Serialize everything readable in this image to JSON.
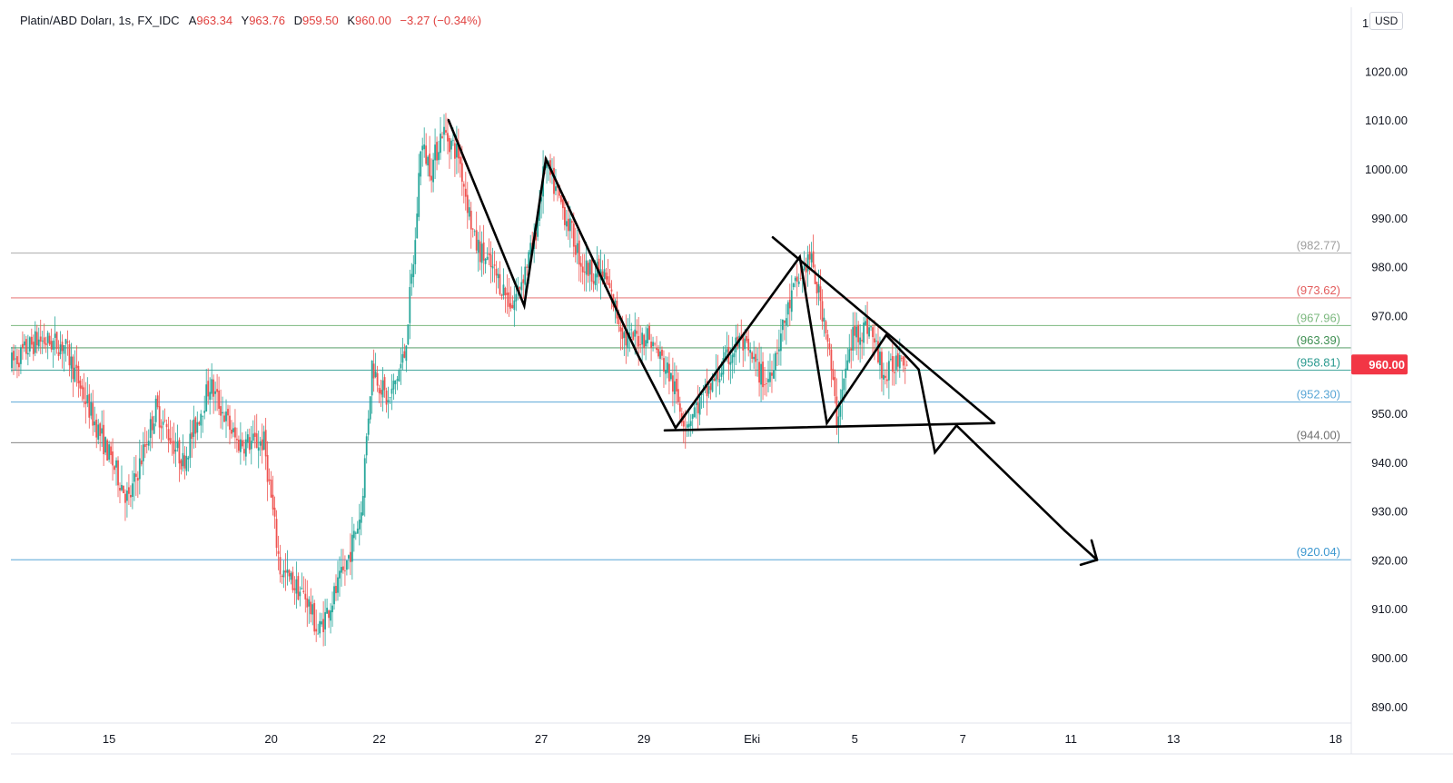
{
  "legend": {
    "symbol": "Platin/ABD Doları, 1s, FX_IDC",
    "open_label": "A",
    "open": "963.34",
    "high_label": "Y",
    "high": "963.76",
    "low_label": "D",
    "low": "959.50",
    "close_label": "K",
    "close": "960.00",
    "change": "−3.27 (−0.34%)"
  },
  "currency": "USD",
  "colors": {
    "up": "#26a69a",
    "down": "#ef5350",
    "last_price_badge": "#f23645",
    "drawing": "#000000"
  },
  "chart_data": {
    "type": "candlestick",
    "y_ticks": [
      "890.00",
      "900.00",
      "910.00",
      "920.00",
      "930.00",
      "940.00",
      "950.00",
      "960.00",
      "970.00",
      "980.00",
      "990.00",
      "1000.00",
      "1010.00",
      "1020.00"
    ],
    "y_top_partial_label": "1",
    "ylim": [
      885,
      1030
    ],
    "x_ticks": [
      {
        "label": "15",
        "slot": 18
      },
      {
        "label": "20",
        "slot": 48
      },
      {
        "label": "22",
        "slot": 68
      },
      {
        "label": "27",
        "slot": 98
      },
      {
        "label": "29",
        "slot": 117
      },
      {
        "label": "Eki",
        "slot": 137
      },
      {
        "label": "5",
        "slot": 156
      },
      {
        "label": "7",
        "slot": 176
      },
      {
        "label": "11",
        "slot": 196
      },
      {
        "label": "13",
        "slot": 215
      },
      {
        "label": "18",
        "slot": 245
      }
    ],
    "candle_count": 166,
    "price_path": [
      [
        0,
        960
      ],
      [
        5,
        965
      ],
      [
        10,
        964
      ],
      [
        15,
        950
      ],
      [
        22,
        932
      ],
      [
        27,
        951
      ],
      [
        32,
        940
      ],
      [
        37,
        956
      ],
      [
        42,
        944
      ],
      [
        47,
        944
      ],
      [
        50,
        918
      ],
      [
        55,
        912
      ],
      [
        57,
        905
      ],
      [
        62,
        918
      ],
      [
        65,
        930
      ],
      [
        67,
        960
      ],
      [
        70,
        952
      ],
      [
        73,
        962
      ],
      [
        75,
        985
      ],
      [
        76,
        1005
      ],
      [
        78,
        1000
      ],
      [
        80,
        1008
      ],
      [
        83,
        1003
      ],
      [
        86,
        985
      ],
      [
        90,
        978
      ],
      [
        93,
        972
      ],
      [
        97,
        985
      ],
      [
        99,
        1001
      ],
      [
        103,
        990
      ],
      [
        106,
        980
      ],
      [
        110,
        978
      ],
      [
        114,
        965
      ],
      [
        118,
        966
      ],
      [
        122,
        958
      ],
      [
        125,
        948
      ],
      [
        130,
        956
      ],
      [
        135,
        965
      ],
      [
        140,
        956
      ],
      [
        145,
        975
      ],
      [
        148,
        982
      ],
      [
        151,
        968
      ],
      [
        153,
        949
      ],
      [
        156,
        966
      ],
      [
        159,
        968
      ],
      [
        162,
        957
      ],
      [
        165,
        963
      ],
      [
        166,
        960
      ]
    ],
    "horizontal_levels": [
      {
        "label": "(982.77)",
        "value": 982.77,
        "color": "#9e9e9e"
      },
      {
        "label": "(973.62)",
        "value": 973.62,
        "color": "#e35d5d"
      },
      {
        "label": "(967.96)",
        "value": 967.96,
        "color": "#7cb87f"
      },
      {
        "label": "(963.39)",
        "value": 963.39,
        "color": "#3e8f52"
      },
      {
        "label": "(958.81)",
        "value": 958.81,
        "color": "#2a9a8f"
      },
      {
        "label": "(952.30)",
        "value": 952.3,
        "color": "#5ba7d6"
      },
      {
        "label": "(944.00)",
        "value": 944.0,
        "color": "#707070"
      },
      {
        "label": "(920.04)",
        "value": 920.04,
        "color": "#3d98d0"
      }
    ],
    "last_price": {
      "label": "960.00",
      "value": 960.0
    },
    "drawings": [
      {
        "kind": "polyline",
        "points": [
          [
            81,
            1010
          ],
          [
            95,
            972
          ],
          [
            99,
            1002
          ],
          [
            116,
            962
          ],
          [
            123,
            947
          ],
          [
            146,
            982
          ],
          [
            151,
            948
          ],
          [
            162,
            966
          ]
        ]
      },
      {
        "kind": "line",
        "points": [
          [
            141,
            986
          ],
          [
            182,
            948
          ]
        ]
      },
      {
        "kind": "line",
        "points": [
          [
            121,
            946.5
          ],
          [
            182,
            948
          ]
        ]
      },
      {
        "kind": "polyline",
        "points": [
          [
            162,
            966
          ],
          [
            168,
            959
          ],
          [
            171,
            942
          ],
          [
            175,
            947.5
          ],
          [
            195,
            926
          ],
          [
            201,
            920
          ]
        ]
      },
      {
        "kind": "line",
        "points": [
          [
            198,
            919
          ],
          [
            201,
            920
          ]
        ]
      },
      {
        "kind": "line",
        "points": [
          [
            201,
            920
          ],
          [
            200,
            924
          ]
        ]
      }
    ]
  }
}
